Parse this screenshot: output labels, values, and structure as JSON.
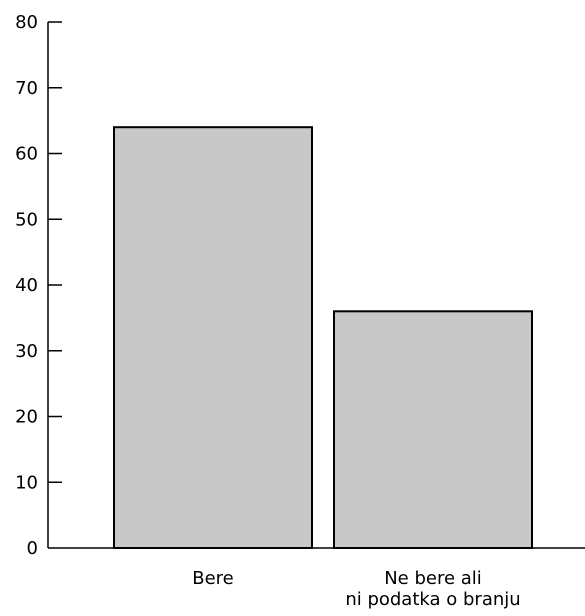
{
  "chart_data": {
    "type": "bar",
    "categories": [
      [
        "Bere"
      ],
      [
        "Ne bere ali",
        "ni podatka o branju"
      ]
    ],
    "values": [
      64,
      36
    ],
    "ylim": [
      0,
      80
    ],
    "yticks": [
      0,
      10,
      20,
      30,
      40,
      50,
      60,
      70,
      80
    ],
    "grid": false,
    "legend": "none",
    "colors": {
      "bar_fill": "#c8c8c8",
      "bar_stroke": "#000000",
      "axis": "#000000",
      "text": "#000000"
    }
  }
}
